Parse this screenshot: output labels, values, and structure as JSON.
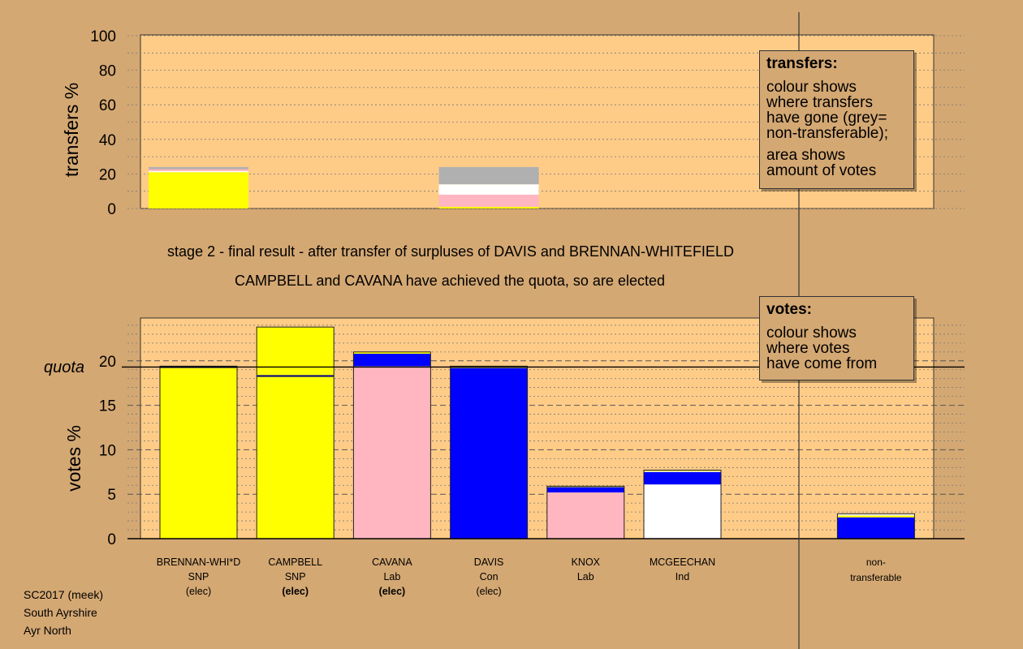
{
  "chart_data": [
    {
      "type": "bar",
      "role": "transfers",
      "ylabel": "transfers %",
      "ylim": [
        0,
        100
      ],
      "yticks": [
        0,
        20,
        40,
        60,
        80,
        100
      ],
      "bars": [
        {
          "position": 1,
          "segments": [
            {
              "color": "#ffff00",
              "value": 21
            },
            {
              "color": "#ffffff",
              "value": 0.7
            },
            {
              "color": "#ffb6c1",
              "value": 1.0
            },
            {
              "color": "#b0b0b0",
              "value": 1.3
            }
          ]
        },
        {
          "position": 4,
          "segments": [
            {
              "color": "#ffff00",
              "value": 1.0
            },
            {
              "color": "#ffb6c1",
              "value": 7.0
            },
            {
              "color": "#ffffff",
              "value": 6.0
            },
            {
              "color": "#b0b0b0",
              "value": 10.0
            }
          ]
        }
      ]
    },
    {
      "type": "bar",
      "role": "votes",
      "ylabel": "votes %",
      "ylim": [
        0,
        25
      ],
      "yticks": [
        0,
        5,
        10,
        15,
        20
      ],
      "quota": 19.3,
      "quota_label": "quota",
      "categories": [
        {
          "name": "BRENNAN-WHI*D",
          "party": "SNP",
          "status": "(elec)",
          "bold": false,
          "position": 1
        },
        {
          "name": "CAMPBELL",
          "party": "SNP",
          "status": "(elec)",
          "bold": true,
          "position": 2
        },
        {
          "name": "CAVANA",
          "party": "Lab",
          "status": "(elec)",
          "bold": true,
          "position": 3
        },
        {
          "name": "DAVIS",
          "party": "Con",
          "status": "(elec)",
          "bold": false,
          "position": 4
        },
        {
          "name": "KNOX",
          "party": "Lab",
          "status": "",
          "bold": false,
          "position": 5
        },
        {
          "name": "MCGEECHAN",
          "party": "Ind",
          "status": "",
          "bold": false,
          "position": 6
        },
        {
          "name": "non-",
          "party": "transferable",
          "status": "",
          "bold": false,
          "position": 8
        }
      ],
      "bars": [
        {
          "position": 1,
          "segments": [
            {
              "color": "#ffff00",
              "value": 19.2
            },
            {
              "color": "#000080",
              "value": 0.2
            }
          ]
        },
        {
          "position": 2,
          "segments": [
            {
              "color": "#ffff00",
              "value": 18.2
            },
            {
              "color": "#000080",
              "value": 0.2
            },
            {
              "color": "#ffff00",
              "value": 5.4
            }
          ]
        },
        {
          "position": 3,
          "segments": [
            {
              "color": "#ffb6c1",
              "value": 19.4
            },
            {
              "color": "#0000ff",
              "value": 1.4
            },
            {
              "color": "#ffff00",
              "value": 0.2
            }
          ]
        },
        {
          "position": 4,
          "segments": [
            {
              "color": "#0000ff",
              "value": 19.2
            },
            {
              "color": "#ffff00",
              "value": 0.2
            }
          ]
        },
        {
          "position": 5,
          "segments": [
            {
              "color": "#ffb6c1",
              "value": 5.2
            },
            {
              "color": "#0000ff",
              "value": 0.6
            },
            {
              "color": "#ffff00",
              "value": 0.1
            }
          ]
        },
        {
          "position": 6,
          "segments": [
            {
              "color": "#ffffff",
              "value": 6.1
            },
            {
              "color": "#0000ff",
              "value": 1.4
            },
            {
              "color": "#ffffff",
              "value": 0.1
            },
            {
              "color": "#ffff00",
              "value": 0.1
            }
          ]
        },
        {
          "position": 8,
          "segments": [
            {
              "color": "#0000ff",
              "value": 2.4
            },
            {
              "color": "#ffff00",
              "value": 0.2
            },
            {
              "color": "#ffffff",
              "value": 0.2
            }
          ]
        }
      ]
    }
  ],
  "stage_title": "stage 2 - final result - after transfer of surpluses of DAVIS and BRENNAN-WHITEFIELD",
  "stage_subtitle": "CAMPBELL and CAVANA have achieved the quota, so are elected",
  "legend_transfers": {
    "title": "transfers:",
    "text1": "colour shows\nwhere transfers\nhave gone (grey=\nnon-transferable);",
    "text2": "area shows\namount of votes"
  },
  "legend_votes": {
    "title": "votes:",
    "text1": "colour shows\nwhere votes\nhave come from"
  },
  "footer": {
    "line1": "SC2017 (meek)",
    "line2": "South Ayrshire",
    "line3": "Ayr North"
  },
  "colors": {
    "background": "#d4a873",
    "panel": "#ffcc88"
  }
}
